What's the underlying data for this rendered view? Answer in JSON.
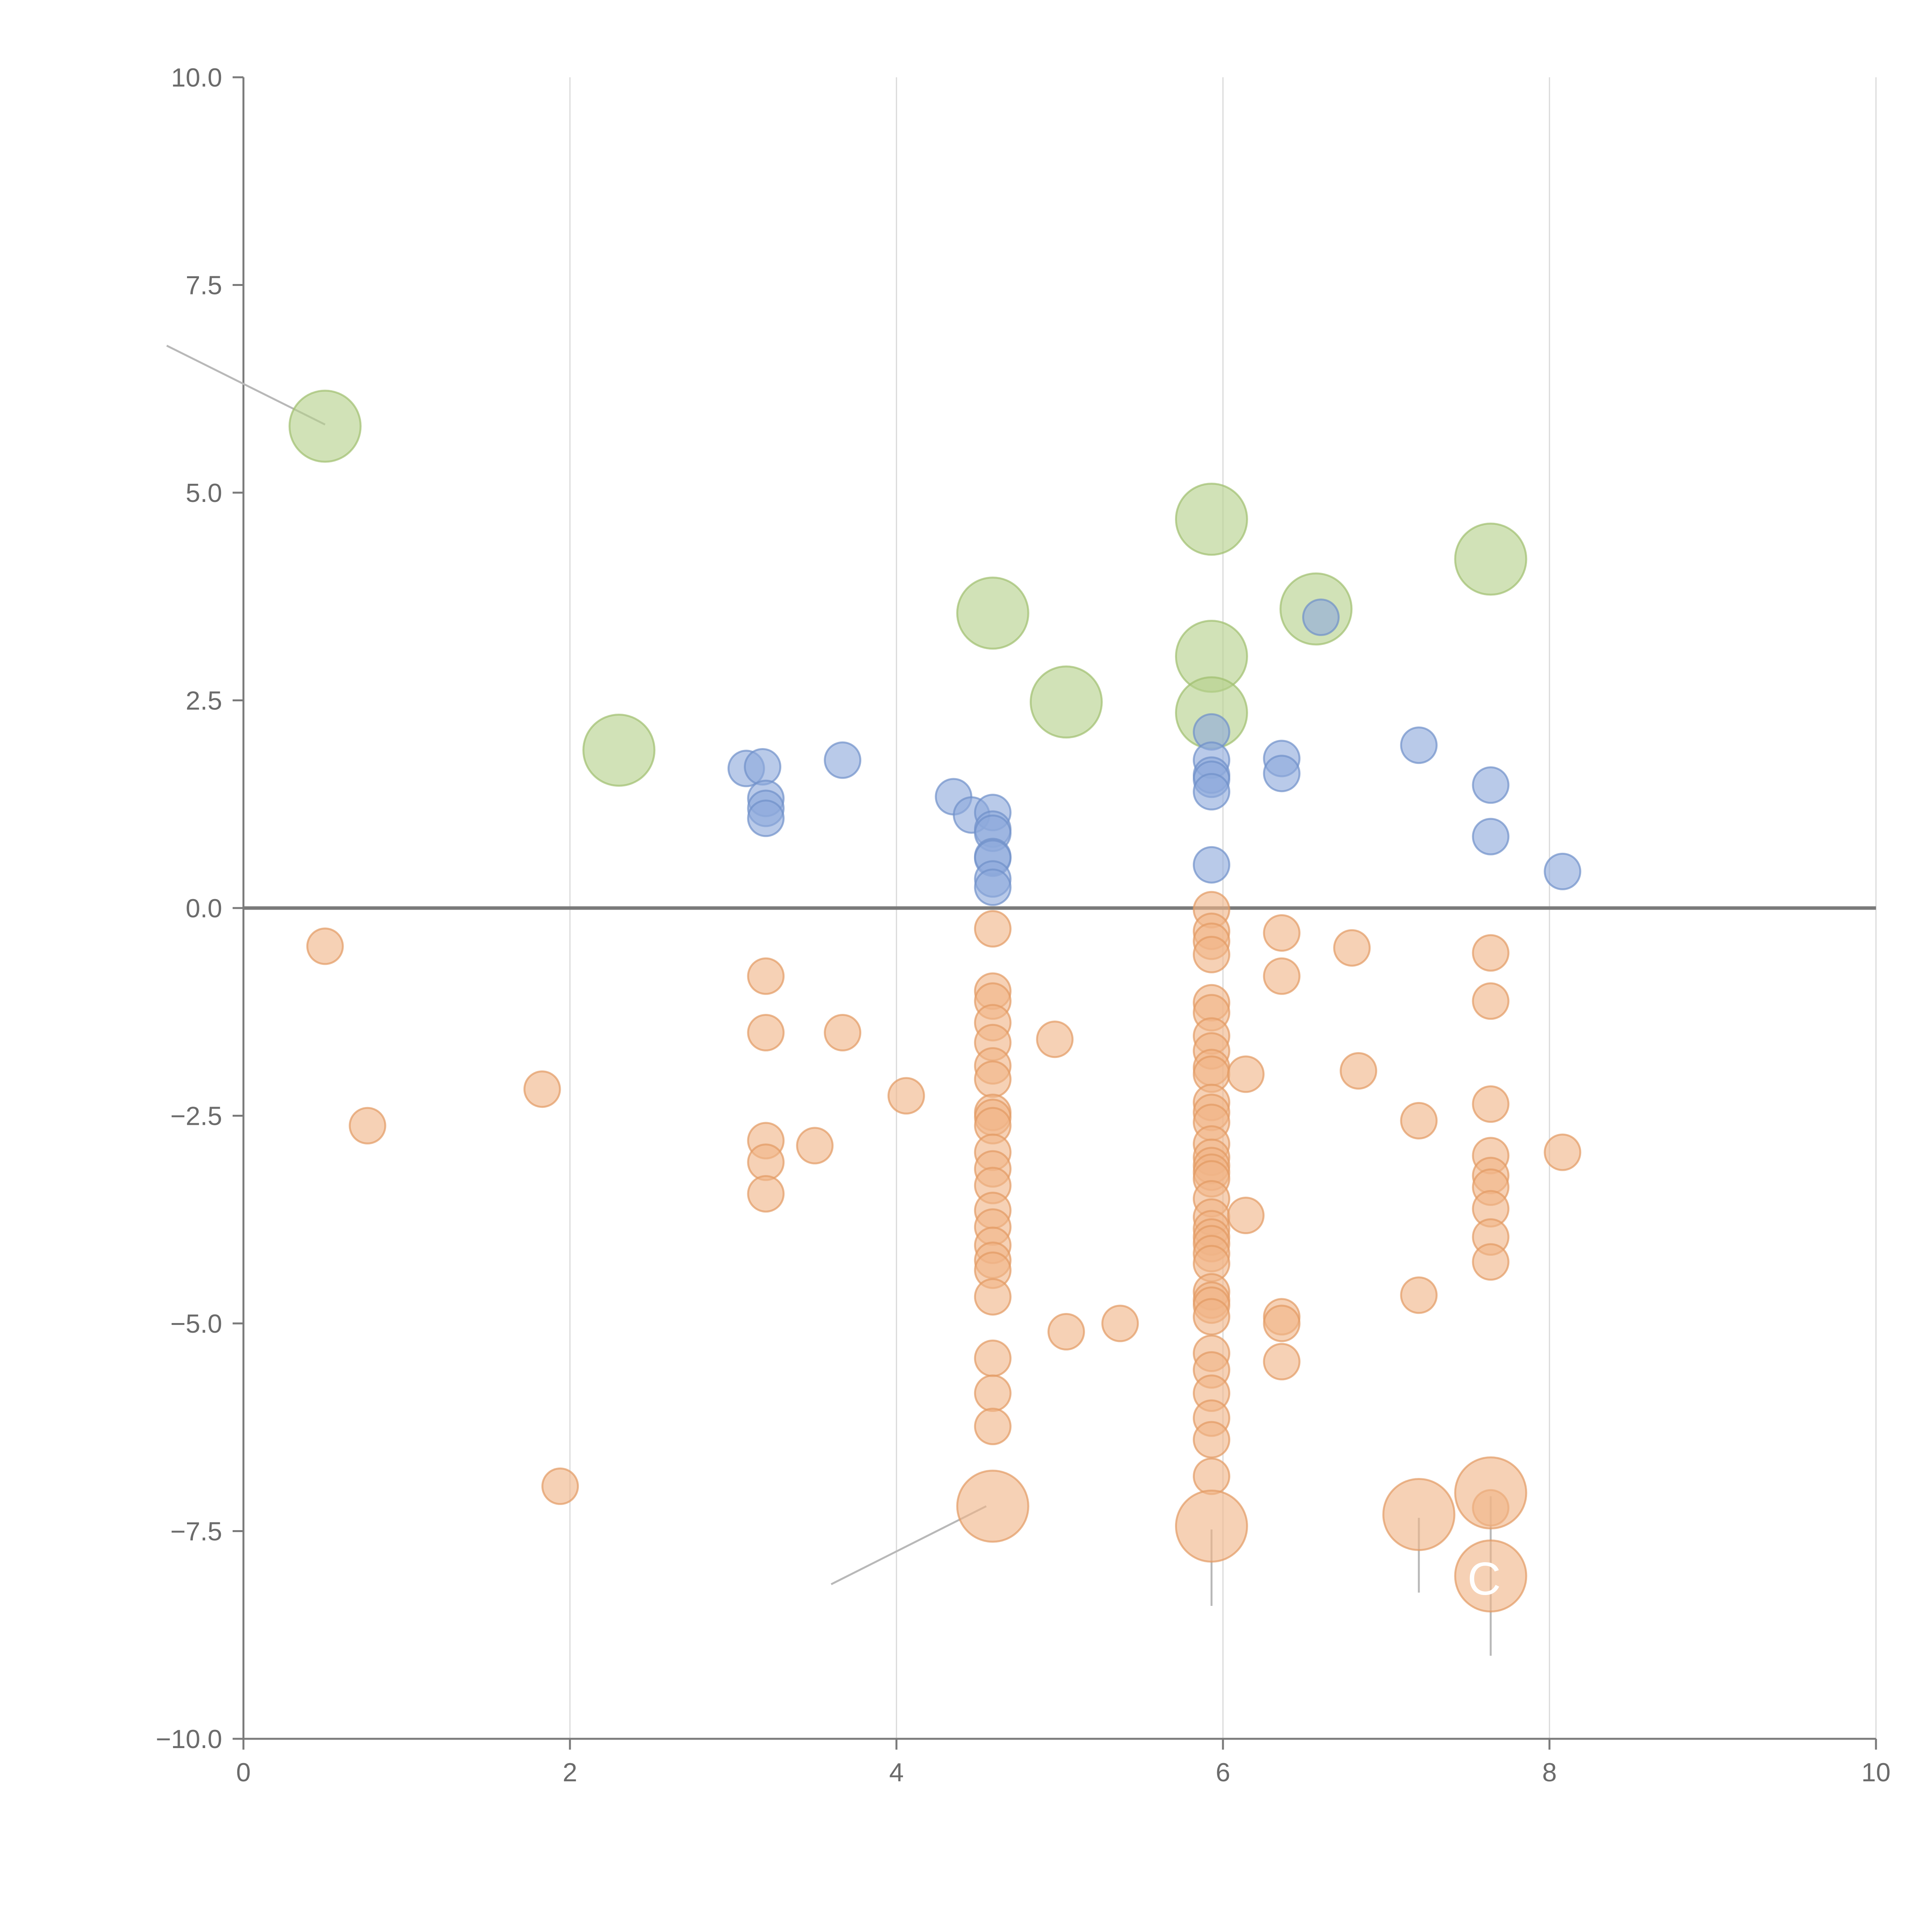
{
  "chart_data": {
    "type": "scatter",
    "title": "",
    "xlabel": "",
    "ylabel": "",
    "xlim": [
      0,
      10
    ],
    "ylim": [
      -10,
      10
    ],
    "x_ticks": [
      0,
      2,
      4,
      6,
      8,
      10
    ],
    "x_tick_labels": [
      "0",
      "2",
      "4",
      "6",
      "8",
      "10"
    ],
    "y_ticks": [
      10,
      7.5,
      5,
      2.5,
      0,
      -2.5,
      -5,
      -7.5,
      -10
    ],
    "y_tick_labels": [
      "10.0",
      "7.5",
      "5.0",
      "2.5",
      "0.0",
      "−2.5",
      "−5.0",
      "−7.5",
      "−10.0"
    ],
    "grid": "vertical",
    "reference_line_y": 0,
    "colors": {
      "green": "#b5d18a",
      "green_edge": "#9fbf6d",
      "blue": "#8eaadb",
      "blue_edge": "#6f90c9",
      "orange": "#f0b487",
      "orange_edge": "#e29a62",
      "axis": "#7a7a7a",
      "grid": "#d9d9d9",
      "leader": "#b8b8b8"
    },
    "series": [
      {
        "name": "green",
        "color": "#b5d18a",
        "size": "large",
        "points": [
          [
            0.5,
            5.8
          ],
          [
            2.3,
            1.9
          ],
          [
            4.59,
            3.55
          ],
          [
            5.04,
            2.48
          ],
          [
            5.93,
            4.68
          ],
          [
            5.93,
            3.03
          ],
          [
            5.93,
            2.35
          ],
          [
            6.57,
            3.6
          ],
          [
            7.64,
            4.2
          ]
        ]
      },
      {
        "name": "blue",
        "color": "#8eaadb",
        "size": "small",
        "points": [
          [
            3.08,
            1.68
          ],
          [
            3.18,
            1.7
          ],
          [
            3.2,
            1.32
          ],
          [
            3.2,
            1.2
          ],
          [
            3.2,
            1.08
          ],
          [
            3.67,
            1.78
          ],
          [
            4.35,
            1.34
          ],
          [
            4.46,
            1.12
          ],
          [
            4.59,
            1.15
          ],
          [
            4.59,
            0.95
          ],
          [
            4.59,
            0.9
          ],
          [
            4.59,
            0.62
          ],
          [
            4.59,
            0.6
          ],
          [
            4.59,
            0.35
          ],
          [
            4.59,
            0.25
          ],
          [
            5.93,
            2.12
          ],
          [
            5.93,
            1.78
          ],
          [
            5.93,
            1.6
          ],
          [
            5.93,
            1.55
          ],
          [
            5.93,
            1.4
          ],
          [
            5.93,
            0.52
          ],
          [
            6.36,
            1.8
          ],
          [
            6.36,
            1.62
          ],
          [
            6.6,
            3.5
          ],
          [
            7.2,
            1.96
          ],
          [
            7.64,
            1.48
          ],
          [
            7.64,
            0.86
          ],
          [
            8.08,
            0.44
          ]
        ]
      },
      {
        "name": "orange",
        "color": "#f0b487",
        "size": "small",
        "points": [
          [
            0.5,
            -0.46
          ],
          [
            0.76,
            -2.62
          ],
          [
            1.83,
            -2.18
          ],
          [
            1.94,
            -6.96
          ],
          [
            3.2,
            -0.82
          ],
          [
            3.2,
            -1.5
          ],
          [
            3.2,
            -2.8
          ],
          [
            3.2,
            -3.06
          ],
          [
            3.2,
            -3.44
          ],
          [
            3.5,
            -2.86
          ],
          [
            3.67,
            -1.5
          ],
          [
            4.06,
            -2.26
          ],
          [
            4.59,
            -0.25
          ],
          [
            4.59,
            -1.0
          ],
          [
            4.59,
            -1.12
          ],
          [
            4.59,
            -1.38
          ],
          [
            4.59,
            -1.62
          ],
          [
            4.59,
            -1.9
          ],
          [
            4.59,
            -2.06
          ],
          [
            4.59,
            -2.46
          ],
          [
            4.59,
            -2.52
          ],
          [
            4.59,
            -2.62
          ],
          [
            4.59,
            -2.94
          ],
          [
            4.59,
            -3.14
          ],
          [
            4.59,
            -3.34
          ],
          [
            4.59,
            -3.64
          ],
          [
            4.59,
            -3.84
          ],
          [
            4.59,
            -4.06
          ],
          [
            4.59,
            -4.24
          ],
          [
            4.59,
            -4.36
          ],
          [
            4.59,
            -4.68
          ],
          [
            4.59,
            -5.42
          ],
          [
            4.59,
            -5.84
          ],
          [
            4.59,
            -6.24
          ],
          [
            4.97,
            -1.58
          ],
          [
            5.04,
            -5.1
          ],
          [
            5.37,
            -5.0
          ],
          [
            5.93,
            -0.02
          ],
          [
            5.93,
            -0.28
          ],
          [
            5.93,
            -0.4
          ],
          [
            5.93,
            -0.56
          ],
          [
            5.93,
            -1.14
          ],
          [
            5.93,
            -1.26
          ],
          [
            5.93,
            -1.54
          ],
          [
            5.93,
            -1.72
          ],
          [
            5.93,
            -1.92
          ],
          [
            5.93,
            -2.0
          ],
          [
            5.93,
            -2.34
          ],
          [
            5.93,
            -2.46
          ],
          [
            5.93,
            -2.58
          ],
          [
            5.93,
            -2.84
          ],
          [
            5.93,
            -3.0
          ],
          [
            5.93,
            -3.1
          ],
          [
            5.93,
            -3.18
          ],
          [
            5.93,
            -3.26
          ],
          [
            5.93,
            -3.5
          ],
          [
            5.93,
            -3.72
          ],
          [
            5.93,
            -3.86
          ],
          [
            5.93,
            -3.96
          ],
          [
            5.93,
            -4.04
          ],
          [
            5.93,
            -4.16
          ],
          [
            5.93,
            -4.28
          ],
          [
            5.93,
            -4.62
          ],
          [
            5.93,
            -4.72
          ],
          [
            5.93,
            -4.78
          ],
          [
            5.93,
            -4.92
          ],
          [
            5.93,
            -5.36
          ],
          [
            5.93,
            -5.56
          ],
          [
            5.93,
            -5.84
          ],
          [
            5.93,
            -6.14
          ],
          [
            5.93,
            -6.4
          ],
          [
            5.93,
            -6.84
          ],
          [
            6.14,
            -2.0
          ],
          [
            6.14,
            -3.7
          ],
          [
            6.36,
            -0.3
          ],
          [
            6.36,
            -0.82
          ],
          [
            6.36,
            -4.92
          ],
          [
            6.36,
            -5.0
          ],
          [
            6.36,
            -5.46
          ],
          [
            6.79,
            -0.48
          ],
          [
            6.83,
            -1.96
          ],
          [
            7.2,
            -2.56
          ],
          [
            7.2,
            -4.66
          ],
          [
            7.64,
            -0.54
          ],
          [
            7.64,
            -1.12
          ],
          [
            7.64,
            -2.36
          ],
          [
            7.64,
            -2.98
          ],
          [
            7.64,
            -3.22
          ],
          [
            7.64,
            -3.36
          ],
          [
            7.64,
            -3.62
          ],
          [
            7.64,
            -3.96
          ],
          [
            7.64,
            -4.26
          ],
          [
            7.64,
            -7.22
          ],
          [
            8.08,
            -2.94
          ]
        ]
      },
      {
        "name": "orange-large",
        "color": "#f0b487",
        "size": "large",
        "points": [
          [
            4.59,
            -7.2
          ],
          [
            5.93,
            -7.44
          ],
          [
            7.2,
            -7.3
          ],
          [
            7.64,
            -7.04
          ],
          [
            7.64,
            -8.04
          ]
        ]
      }
    ],
    "annotations": [
      {
        "text": "C",
        "x": 7.6,
        "y": -8.08
      }
    ],
    "leader_lines": [
      {
        "from": [
          0.5,
          5.82
        ],
        "to": [
          -0.47,
          6.77
        ]
      },
      {
        "from": [
          4.55,
          -7.2
        ],
        "to": [
          3.6,
          -8.14
        ]
      },
      {
        "from": [
          5.93,
          -7.48
        ],
        "to": [
          5.93,
          -8.4
        ]
      },
      {
        "from": [
          7.2,
          -7.34
        ],
        "to": [
          7.2,
          -8.24
        ]
      },
      {
        "from": [
          7.64,
          -7.08
        ],
        "to": [
          7.64,
          -9.0
        ]
      }
    ]
  }
}
